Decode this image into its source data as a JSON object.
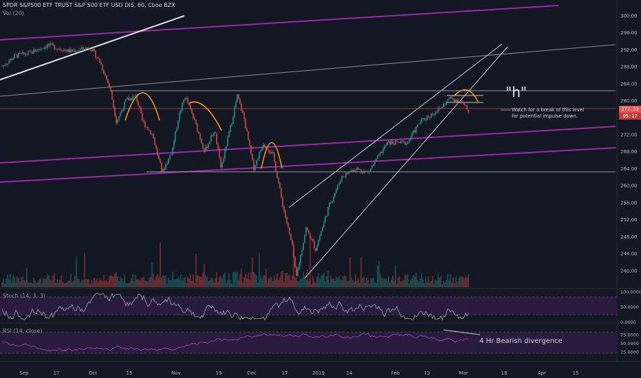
{
  "header": {
    "symbol_line": "SPDR S&P500 ETF TRUST S&P 500 ETF USD DIS, 60, Cboe BZX",
    "volume_label": "Vol (20)"
  },
  "price_badge": {
    "price": "277.23",
    "countdown": "05:17",
    "color": "#ef5350"
  },
  "annotations": {
    "pattern_label": "\"h\"",
    "watch_note_1": "Watch for a break of this level",
    "watch_note_2": "for potential impulse down.",
    "divergence_note": "4 Hr Bearish divergence"
  },
  "indicators": {
    "stoch_label": "Stoch (14, 3, 3)",
    "rsi_label": "RSI (14, close)"
  },
  "colors": {
    "background": "#131722",
    "up": "#26a69a",
    "down": "#ef5350",
    "channel": "#9c27b0",
    "osc_fill": "#2a1a3e",
    "osc_line": "#8e44ad",
    "arc": "#ff9800"
  },
  "chart_data": [
    {
      "type": "candlestick",
      "ylim": [
        236,
        302
      ],
      "price_ticks": [
        "300.00",
        "296.00",
        "292.00",
        "288.00",
        "284.00",
        "280.00",
        "276.00",
        "272.00",
        "268.00",
        "264.00",
        "260.00",
        "256.00",
        "252.00",
        "248.00",
        "244.00",
        "240.00"
      ],
      "x_ticks": [
        "Sep",
        "17",
        "Oct",
        "15",
        "Nov",
        "19",
        "Dec",
        "17",
        "2019",
        "14",
        "Feb",
        "13",
        "Mar",
        "18",
        "Apr",
        "15"
      ],
      "last_price": 277.23,
      "horizontal_levels": [
        281,
        278.5,
        276.5,
        263
      ],
      "trajectory": [
        {
          "d": 0,
          "p": 288
        },
        {
          "d": 4,
          "p": 290.5
        },
        {
          "d": 8,
          "p": 291
        },
        {
          "d": 14,
          "p": 293
        },
        {
          "d": 21,
          "p": 291.5
        },
        {
          "d": 27,
          "p": 292.5
        },
        {
          "d": 30,
          "p": 289
        },
        {
          "d": 33,
          "p": 283
        },
        {
          "d": 35,
          "p": 275
        },
        {
          "d": 38,
          "p": 280
        },
        {
          "d": 41,
          "p": 281
        },
        {
          "d": 43,
          "p": 275
        },
        {
          "d": 46,
          "p": 272
        },
        {
          "d": 49,
          "p": 263
        },
        {
          "d": 52,
          "p": 268
        },
        {
          "d": 54,
          "p": 276
        },
        {
          "d": 56,
          "p": 281
        },
        {
          "d": 59,
          "p": 275
        },
        {
          "d": 62,
          "p": 268
        },
        {
          "d": 65,
          "p": 273
        },
        {
          "d": 67,
          "p": 264
        },
        {
          "d": 70,
          "p": 274
        },
        {
          "d": 72,
          "p": 281
        },
        {
          "d": 74,
          "p": 276
        },
        {
          "d": 77,
          "p": 264
        },
        {
          "d": 80,
          "p": 270
        },
        {
          "d": 83,
          "p": 267
        },
        {
          "d": 86,
          "p": 255
        },
        {
          "d": 89,
          "p": 245
        },
        {
          "d": 90,
          "p": 238
        },
        {
          "d": 93,
          "p": 250
        },
        {
          "d": 96,
          "p": 245
        },
        {
          "d": 100,
          "p": 255
        },
        {
          "d": 104,
          "p": 262
        },
        {
          "d": 108,
          "p": 264
        },
        {
          "d": 112,
          "p": 263
        },
        {
          "d": 118,
          "p": 270
        },
        {
          "d": 124,
          "p": 270
        },
        {
          "d": 128,
          "p": 275
        },
        {
          "d": 134,
          "p": 278
        },
        {
          "d": 137,
          "p": 280.5
        },
        {
          "d": 140,
          "p": 280
        },
        {
          "d": 143,
          "p": 277.2
        }
      ]
    },
    {
      "type": "line",
      "name": "Stoch (14, 3, 3)",
      "y_ticks": [
        "100.0000",
        "50.0000",
        "0.0000"
      ],
      "ylim": [
        0,
        100
      ]
    },
    {
      "type": "line",
      "name": "RSI (14, close)",
      "y_ticks": [
        "75.0000",
        "50.0000",
        "25.0000"
      ],
      "ylim": [
        0,
        100
      ]
    }
  ]
}
